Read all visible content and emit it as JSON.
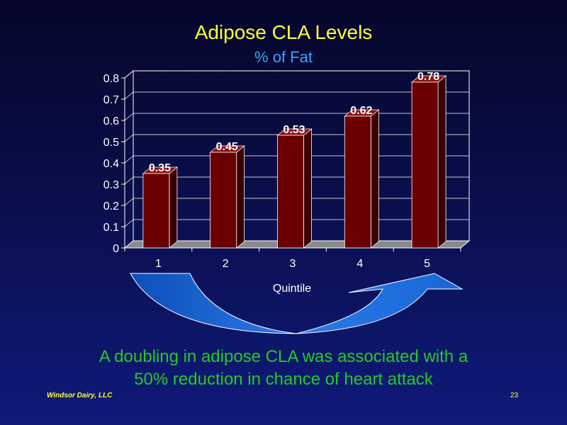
{
  "slide": {
    "title": "Adipose CLA Levels",
    "subtitle": "% of Fat",
    "conclusion_line1": "A doubling in adipose CLA was associated with a",
    "conclusion_line2": "50% reduction in chance of heart attack",
    "footer_left": "Windsor Dairy, LLC",
    "footer_right": "23"
  },
  "colors": {
    "bar_front": "#6b0000",
    "bar_top": "#8a1010",
    "bar_side": "#3a0000",
    "arrow": "#1a6ad6",
    "title": "#ffff33",
    "subtitle": "#33a8ff",
    "conclusion": "#22cc22"
  },
  "chart_data": {
    "type": "bar",
    "categories": [
      "1",
      "2",
      "3",
      "4",
      "5"
    ],
    "values": [
      0.35,
      0.45,
      0.53,
      0.62,
      0.78
    ],
    "data_labels": [
      "0.35",
      "0.45",
      "0.53",
      "0.62",
      "0.78"
    ],
    "y_ticks": [
      "0",
      "0.1",
      "0.2",
      "0.3",
      "0.4",
      "0.5",
      "0.6",
      "0.7",
      "0.8"
    ],
    "xlabel": "Quintile",
    "ylabel": "",
    "ylim": [
      0,
      0.8
    ],
    "grid": true,
    "three_d": true
  }
}
